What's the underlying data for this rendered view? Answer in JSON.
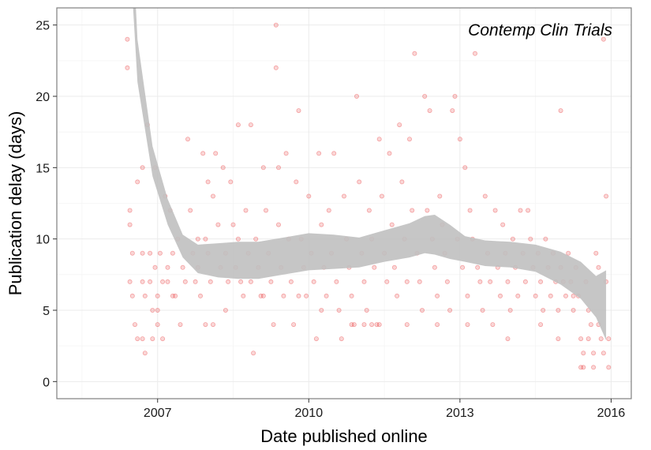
{
  "chart_data": {
    "type": "scatter",
    "title": "",
    "annotation": "Contemp Clin Trials",
    "xlabel": "Date published online",
    "ylabel": "Publication delay (days)",
    "xlim": [
      2005.0,
      2016.4
    ],
    "ylim": [
      -1.2,
      26.2
    ],
    "x_ticks": [
      2007,
      2010,
      2013,
      2016
    ],
    "x_tick_labels": [
      "2007",
      "2010",
      "2013",
      "2016"
    ],
    "y_ticks": [
      0,
      5,
      10,
      15,
      20,
      25
    ],
    "y_tick_labels": [
      "0",
      "5",
      "10",
      "15",
      "20",
      "25"
    ],
    "grid": true,
    "point_color": "#e41a1c",
    "smooth_band_color": "#c0c0c0",
    "points": [
      [
        2006.4,
        24
      ],
      [
        2006.4,
        22
      ],
      [
        2006.45,
        12
      ],
      [
        2006.45,
        11
      ],
      [
        2006.5,
        9
      ],
      [
        2006.45,
        7
      ],
      [
        2006.5,
        6
      ],
      [
        2006.55,
        4
      ],
      [
        2006.6,
        14
      ],
      [
        2006.6,
        3
      ],
      [
        2006.7,
        15
      ],
      [
        2006.7,
        9
      ],
      [
        2006.7,
        7
      ],
      [
        2006.75,
        6
      ],
      [
        2006.7,
        3
      ],
      [
        2006.75,
        2
      ],
      [
        2006.8,
        18
      ],
      [
        2006.85,
        9
      ],
      [
        2006.85,
        7
      ],
      [
        2006.9,
        5
      ],
      [
        2006.9,
        3
      ],
      [
        2006.95,
        15
      ],
      [
        2006.95,
        8
      ],
      [
        2007.0,
        6
      ],
      [
        2007.0,
        5
      ],
      [
        2007.0,
        4
      ],
      [
        2007.05,
        9
      ],
      [
        2007.1,
        7
      ],
      [
        2007.1,
        3
      ],
      [
        2007.15,
        13
      ],
      [
        2007.2,
        8
      ],
      [
        2007.2,
        7
      ],
      [
        2007.25,
        12
      ],
      [
        2007.3,
        9
      ],
      [
        2007.35,
        6
      ],
      [
        2007.4,
        10
      ],
      [
        2007.45,
        4
      ],
      [
        2007.5,
        8
      ],
      [
        2007.55,
        7
      ],
      [
        2007.6,
        17
      ],
      [
        2007.65,
        12
      ],
      [
        2007.7,
        9
      ],
      [
        2007.75,
        7
      ],
      [
        2007.8,
        10
      ],
      [
        2007.8,
        8
      ],
      [
        2007.85,
        6
      ],
      [
        2007.9,
        16
      ],
      [
        2007.95,
        10
      ],
      [
        2008.0,
        14
      ],
      [
        2008.0,
        9
      ],
      [
        2008.05,
        7
      ],
      [
        2008.1,
        4
      ],
      [
        2008.1,
        13
      ],
      [
        2008.15,
        16
      ],
      [
        2008.2,
        11
      ],
      [
        2008.25,
        8
      ],
      [
        2008.3,
        15
      ],
      [
        2008.35,
        9
      ],
      [
        2008.4,
        7
      ],
      [
        2008.45,
        14
      ],
      [
        2008.5,
        11
      ],
      [
        2008.55,
        8
      ],
      [
        2008.6,
        18
      ],
      [
        2008.6,
        10
      ],
      [
        2008.65,
        7
      ],
      [
        2008.7,
        6
      ],
      [
        2008.75,
        12
      ],
      [
        2008.8,
        9
      ],
      [
        2008.85,
        18
      ],
      [
        2008.85,
        7
      ],
      [
        2008.9,
        2
      ],
      [
        2008.95,
        10
      ],
      [
        2009.0,
        8
      ],
      [
        2009.05,
        6
      ],
      [
        2009.1,
        15
      ],
      [
        2009.15,
        12
      ],
      [
        2009.2,
        9
      ],
      [
        2009.25,
        7
      ],
      [
        2009.3,
        4
      ],
      [
        2009.35,
        25
      ],
      [
        2009.35,
        22
      ],
      [
        2009.4,
        15
      ],
      [
        2009.4,
        11
      ],
      [
        2009.45,
        8
      ],
      [
        2009.5,
        6
      ],
      [
        2009.55,
        16
      ],
      [
        2009.6,
        10
      ],
      [
        2009.65,
        7
      ],
      [
        2009.7,
        4
      ],
      [
        2009.75,
        14
      ],
      [
        2009.8,
        19
      ],
      [
        2009.85,
        10
      ],
      [
        2009.9,
        8
      ],
      [
        2009.95,
        6
      ],
      [
        2010.0,
        13
      ],
      [
        2010.05,
        9
      ],
      [
        2010.1,
        7
      ],
      [
        2010.15,
        3
      ],
      [
        2010.2,
        16
      ],
      [
        2010.25,
        11
      ],
      [
        2010.3,
        8
      ],
      [
        2010.35,
        6
      ],
      [
        2010.4,
        12
      ],
      [
        2010.45,
        9
      ],
      [
        2010.5,
        16
      ],
      [
        2010.55,
        7
      ],
      [
        2010.6,
        5
      ],
      [
        2010.65,
        3
      ],
      [
        2010.7,
        13
      ],
      [
        2010.75,
        10
      ],
      [
        2010.8,
        8
      ],
      [
        2010.85,
        6
      ],
      [
        2010.9,
        4
      ],
      [
        2010.95,
        20
      ],
      [
        2011.0,
        14
      ],
      [
        2011.05,
        9
      ],
      [
        2011.1,
        7
      ],
      [
        2011.15,
        5
      ],
      [
        2011.2,
        12
      ],
      [
        2011.25,
        10
      ],
      [
        2011.3,
        8
      ],
      [
        2011.35,
        4
      ],
      [
        2011.4,
        17
      ],
      [
        2011.45,
        13
      ],
      [
        2011.5,
        9
      ],
      [
        2011.55,
        7
      ],
      [
        2011.6,
        16
      ],
      [
        2011.65,
        11
      ],
      [
        2011.7,
        8
      ],
      [
        2011.75,
        6
      ],
      [
        2011.8,
        18
      ],
      [
        2011.85,
        14
      ],
      [
        2011.9,
        10
      ],
      [
        2011.95,
        7
      ],
      [
        2012.0,
        17
      ],
      [
        2012.05,
        12
      ],
      [
        2012.1,
        23
      ],
      [
        2012.15,
        9
      ],
      [
        2012.2,
        7
      ],
      [
        2012.25,
        5
      ],
      [
        2012.3,
        20
      ],
      [
        2012.35,
        12
      ],
      [
        2012.4,
        19
      ],
      [
        2012.45,
        10
      ],
      [
        2012.5,
        8
      ],
      [
        2012.55,
        6
      ],
      [
        2012.6,
        13
      ],
      [
        2012.65,
        11
      ],
      [
        2012.7,
        9
      ],
      [
        2012.75,
        7
      ],
      [
        2012.8,
        5
      ],
      [
        2012.85,
        19
      ],
      [
        2012.9,
        20
      ],
      [
        2012.95,
        10
      ],
      [
        2013.0,
        17
      ],
      [
        2013.05,
        8
      ],
      [
        2013.1,
        15
      ],
      [
        2013.15,
        6
      ],
      [
        2013.2,
        12
      ],
      [
        2013.25,
        10
      ],
      [
        2013.3,
        23
      ],
      [
        2013.35,
        8
      ],
      [
        2013.4,
        7
      ],
      [
        2013.45,
        5
      ],
      [
        2013.5,
        13
      ],
      [
        2013.55,
        9
      ],
      [
        2013.6,
        7
      ],
      [
        2013.65,
        4
      ],
      [
        2013.7,
        12
      ],
      [
        2013.75,
        8
      ],
      [
        2013.8,
        6
      ],
      [
        2013.85,
        11
      ],
      [
        2013.9,
        9
      ],
      [
        2013.95,
        7
      ],
      [
        2014.0,
        5
      ],
      [
        2014.05,
        10
      ],
      [
        2014.1,
        8
      ],
      [
        2014.15,
        6
      ],
      [
        2014.2,
        12
      ],
      [
        2014.25,
        9
      ],
      [
        2014.3,
        7
      ],
      [
        2014.35,
        12
      ],
      [
        2014.4,
        10
      ],
      [
        2014.45,
        8
      ],
      [
        2014.5,
        6
      ],
      [
        2014.55,
        9
      ],
      [
        2014.6,
        7
      ],
      [
        2014.65,
        5
      ],
      [
        2014.7,
        10
      ],
      [
        2014.75,
        8
      ],
      [
        2014.8,
        6
      ],
      [
        2014.85,
        9
      ],
      [
        2014.9,
        7
      ],
      [
        2014.95,
        5
      ],
      [
        2015.0,
        19
      ],
      [
        2015.0,
        8
      ],
      [
        2015.05,
        7
      ],
      [
        2015.1,
        6
      ],
      [
        2015.15,
        9
      ],
      [
        2015.2,
        7
      ],
      [
        2015.25,
        5
      ],
      [
        2015.3,
        8
      ],
      [
        2015.35,
        6
      ],
      [
        2015.4,
        3
      ],
      [
        2015.45,
        2
      ],
      [
        2015.45,
        1
      ],
      [
        2015.5,
        7
      ],
      [
        2015.55,
        5
      ],
      [
        2015.6,
        4
      ],
      [
        2015.65,
        2
      ],
      [
        2015.7,
        9
      ],
      [
        2015.75,
        8
      ],
      [
        2015.75,
        4
      ],
      [
        2015.8,
        3
      ],
      [
        2015.85,
        24
      ],
      [
        2015.85,
        2
      ],
      [
        2015.9,
        13
      ],
      [
        2015.9,
        7
      ],
      [
        2015.95,
        3
      ],
      [
        2015.95,
        1
      ],
      [
        2015.55,
        3
      ],
      [
        2015.4,
        1
      ],
      [
        2015.65,
        1
      ],
      [
        2015.25,
        6
      ],
      [
        2014.95,
        3
      ],
      [
        2014.6,
        4
      ],
      [
        2013.95,
        3
      ],
      [
        2013.15,
        4
      ],
      [
        2012.55,
        4
      ],
      [
        2011.95,
        4
      ],
      [
        2011.4,
        4
      ],
      [
        2011.25,
        4
      ],
      [
        2011.1,
        4
      ],
      [
        2010.85,
        4
      ],
      [
        2010.25,
        5
      ],
      [
        2009.8,
        6
      ],
      [
        2009.1,
        6
      ],
      [
        2008.35,
        5
      ],
      [
        2007.95,
        4
      ],
      [
        2007.3,
        6
      ]
    ],
    "smooth_upper": [
      [
        2006.35,
        42
      ],
      [
        2006.6,
        24
      ],
      [
        2006.9,
        16.5
      ],
      [
        2007.2,
        12.8
      ],
      [
        2007.5,
        10.3
      ],
      [
        2007.8,
        9.6
      ],
      [
        2008.2,
        9.7
      ],
      [
        2008.6,
        9.8
      ],
      [
        2009.0,
        9.8
      ],
      [
        2009.5,
        10.1
      ],
      [
        2010.0,
        10.4
      ],
      [
        2010.5,
        10.3
      ],
      [
        2011.0,
        10.1
      ],
      [
        2011.5,
        10.6
      ],
      [
        2012.0,
        11.1
      ],
      [
        2012.3,
        11.6
      ],
      [
        2012.5,
        11.7
      ],
      [
        2012.8,
        11.0
      ],
      [
        2013.1,
        10.2
      ],
      [
        2013.5,
        9.9
      ],
      [
        2014.0,
        9.8
      ],
      [
        2014.5,
        9.6
      ],
      [
        2015.0,
        9.1
      ],
      [
        2015.4,
        8.4
      ],
      [
        2015.7,
        7.4
      ],
      [
        2015.9,
        7.8
      ]
    ],
    "smooth_lower": [
      [
        2006.35,
        36
      ],
      [
        2006.6,
        21
      ],
      [
        2006.9,
        14.4
      ],
      [
        2007.2,
        11.0
      ],
      [
        2007.5,
        8.7
      ],
      [
        2007.8,
        7.6
      ],
      [
        2008.2,
        7.3
      ],
      [
        2008.6,
        7.2
      ],
      [
        2009.0,
        7.2
      ],
      [
        2009.5,
        7.5
      ],
      [
        2010.0,
        7.8
      ],
      [
        2010.5,
        7.9
      ],
      [
        2011.0,
        8.0
      ],
      [
        2011.5,
        8.4
      ],
      [
        2012.0,
        8.7
      ],
      [
        2012.3,
        9.0
      ],
      [
        2012.5,
        8.9
      ],
      [
        2012.8,
        8.6
      ],
      [
        2013.1,
        8.4
      ],
      [
        2013.5,
        8.1
      ],
      [
        2014.0,
        8.0
      ],
      [
        2014.5,
        7.7
      ],
      [
        2015.0,
        6.8
      ],
      [
        2015.4,
        5.8
      ],
      [
        2015.7,
        4.5
      ],
      [
        2015.9,
        2.9
      ]
    ]
  }
}
